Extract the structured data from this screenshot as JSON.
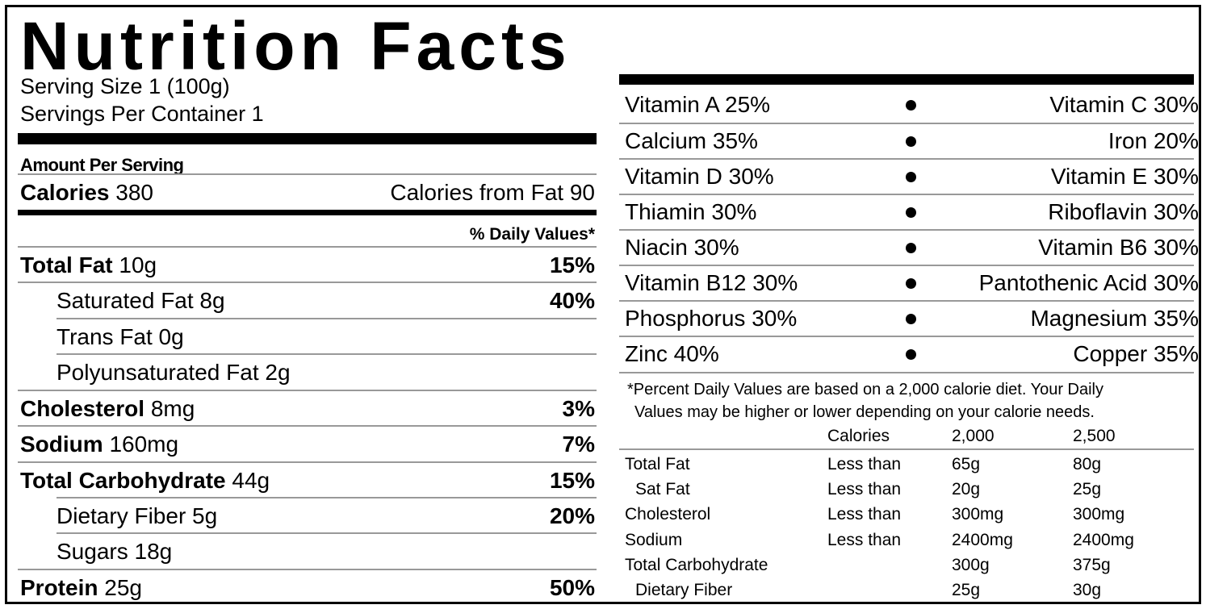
{
  "title": "Nutrition Facts",
  "serving": {
    "size": "Serving Size 1  (100g)",
    "per_container": "Servings Per Container 1"
  },
  "amount_per_serving": "Amount Per Serving",
  "calories": {
    "label": "Calories",
    "value": "380",
    "from_fat": "Calories from Fat 90"
  },
  "daily_values_header": "% Daily Values*",
  "nutrients": [
    {
      "label": "Total Fat",
      "amount": "10g",
      "pct": "15%"
    },
    {
      "label": "Saturated Fat 8g",
      "amount": "",
      "pct": "40%"
    },
    {
      "label": "Trans Fat 0g",
      "amount": "",
      "pct": ""
    },
    {
      "label": "Polyunsaturated Fat 2g",
      "amount": "",
      "pct": ""
    },
    {
      "label": "Cholesterol",
      "amount": "8mg",
      "pct": "3%"
    },
    {
      "label": "Sodium",
      "amount": "160mg",
      "pct": "7%"
    },
    {
      "label": "Total Carbohydrate",
      "amount": "44g",
      "pct": "15%"
    },
    {
      "label": "Dietary Fiber 5g",
      "amount": "",
      "pct": "20%"
    },
    {
      "label": "Sugars 18g",
      "amount": "",
      "pct": ""
    },
    {
      "label": "Protein",
      "amount": "25g",
      "pct": "50%"
    }
  ],
  "vitamins": [
    {
      "left": "Vitamin A 25%",
      "right": "Vitamin C 30%"
    },
    {
      "left": "Calcium 35%",
      "right": "Iron 20%"
    },
    {
      "left": "Vitamin D 30%",
      "right": "Vitamin E 30%"
    },
    {
      "left": "Thiamin 30%",
      "right": "Riboflavin 30%"
    },
    {
      "left": "Niacin 30%",
      "right": "Vitamin B6 30%"
    },
    {
      "left": "Vitamin B12 30%",
      "right": "Pantothenic Acid 30%"
    },
    {
      "left": "Phosphorus 30%",
      "right": "Magnesium 35%"
    },
    {
      "left": "Zinc 40%",
      "right": "Copper 35%"
    }
  ],
  "footnote": {
    "line1": "*Percent Daily Values are based on a 2,000 calorie diet. Your Daily",
    "line2": "Values may be higher or lower depending on your calorie needs."
  },
  "dv_table": {
    "header": [
      "Calories",
      "2,000",
      "2,500"
    ],
    "rows": [
      [
        "Total Fat",
        "Less than",
        "65g",
        "80g"
      ],
      [
        "Sat Fat",
        "Less than",
        "20g",
        "25g"
      ],
      [
        "Cholesterol",
        "Less than",
        "300mg",
        "300mg"
      ],
      [
        "Sodium",
        "Less than",
        "2400mg",
        "2400mg"
      ],
      [
        "Total Carbohydrate",
        "",
        "300g",
        "375g"
      ],
      [
        "Dietary Fiber",
        "",
        "25g",
        "30g"
      ]
    ]
  }
}
